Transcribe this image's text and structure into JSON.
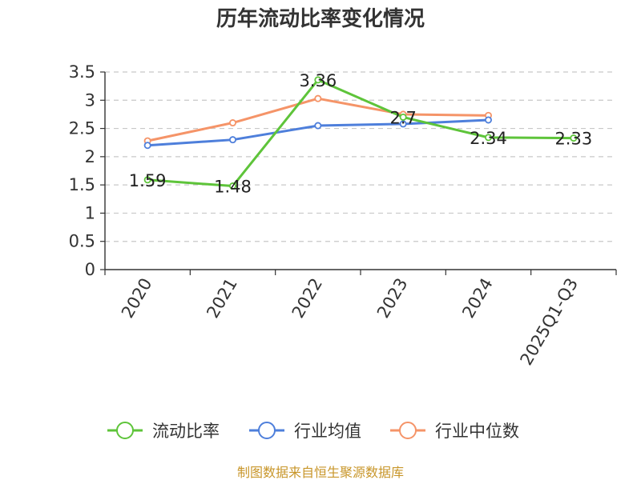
{
  "chart_data": {
    "type": "line",
    "title": "历年流动比率变化情况",
    "categories": [
      "2020",
      "2021",
      "2022",
      "2023",
      "2024",
      "2025Q1-Q3"
    ],
    "ylim": [
      0,
      3.5
    ],
    "yticks": [
      "0",
      "0.5",
      "1",
      "1.5",
      "2",
      "2.5",
      "3",
      "3.5"
    ],
    "grid": true,
    "legend_position": "bottom",
    "series": [
      {
        "name": "流动比率",
        "color": "#5ec43a",
        "values": [
          1.59,
          1.48,
          3.36,
          2.7,
          2.34,
          2.33
        ],
        "labels": [
          "1.59",
          "1.48",
          "3.36",
          "2.7",
          "2.34",
          "2.33"
        ]
      },
      {
        "name": "行业均值",
        "color": "#4e7fdb",
        "values": [
          2.2,
          2.3,
          2.55,
          2.58,
          2.65,
          null
        ]
      },
      {
        "name": "行业中位数",
        "color": "#f59468",
        "values": [
          2.28,
          2.6,
          3.03,
          2.75,
          2.73,
          null
        ]
      }
    ],
    "source": "制图数据来自恒生聚源数据库",
    "source_color": "#c8962a"
  }
}
